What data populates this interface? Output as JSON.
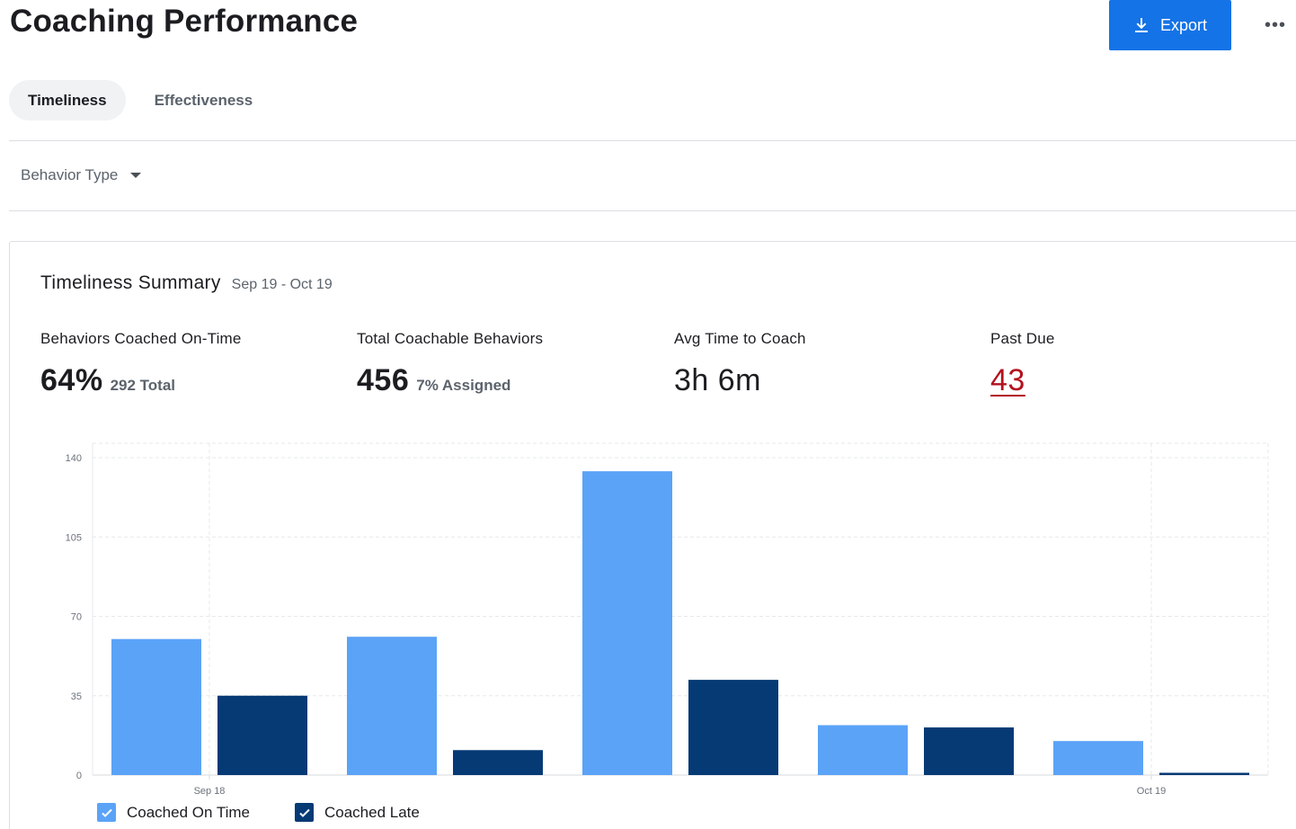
{
  "page": {
    "title": "Coaching Performance"
  },
  "header": {
    "export_label": "Export",
    "more_label": "•••"
  },
  "tabs": [
    {
      "label": "Timeliness",
      "active": true
    },
    {
      "label": "Effectiveness",
      "active": false
    }
  ],
  "filters": {
    "behavior_type_label": "Behavior Type"
  },
  "summary": {
    "title": "Timeliness Summary",
    "date_range": "Sep 19 - Oct 19",
    "metrics": [
      {
        "label": "Behaviors Coached On-Time",
        "value": "64%",
        "sub": "292 Total"
      },
      {
        "label": "Total Coachable Behaviors",
        "value": "456",
        "sub": "7% Assigned"
      },
      {
        "label": "Avg Time to Coach",
        "value": "3h 6m",
        "sub": ""
      },
      {
        "label": "Past Due",
        "value": "43",
        "sub": ""
      }
    ]
  },
  "colors": {
    "on_time": "#5ba3f7",
    "late": "#053a75",
    "accent": "#1473e6",
    "past_due": "#b3121f"
  },
  "chart_data": {
    "type": "bar",
    "title": "",
    "xlabel": "",
    "ylabel": "",
    "ylim": [
      0,
      140
    ],
    "yticks": [
      0,
      35,
      70,
      105,
      140
    ],
    "x_tick_labels": [
      "Sep 18",
      "Oct 19"
    ],
    "groups": 5,
    "series": [
      {
        "name": "Coached On Time",
        "color": "#5ba3f7",
        "values": [
          60,
          61,
          134,
          22,
          15
        ]
      },
      {
        "name": "Coached Late",
        "color": "#053a75",
        "values": [
          35,
          11,
          42,
          21,
          1
        ]
      }
    ],
    "legend": [
      "Coached On Time",
      "Coached Late"
    ]
  }
}
